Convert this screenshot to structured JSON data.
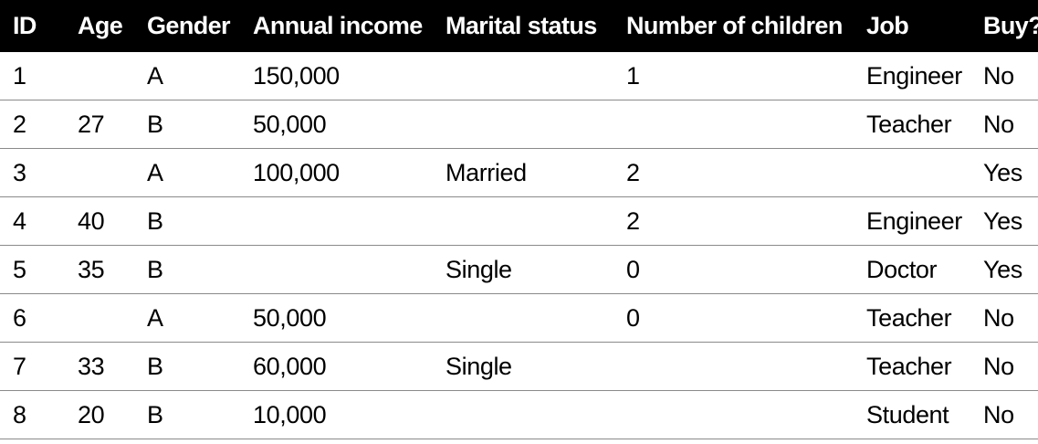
{
  "table": {
    "headers": [
      "ID",
      "Age",
      "Gender",
      "Annual income",
      "Marital status",
      "Number of children",
      "Job",
      "Buy?"
    ],
    "rows": [
      [
        "1",
        "",
        "A",
        "150,000",
        "",
        "1",
        "Engineer",
        "No"
      ],
      [
        "2",
        "27",
        "B",
        "50,000",
        "",
        "",
        "Teacher",
        "No"
      ],
      [
        "3",
        "",
        "A",
        "100,000",
        "Married",
        "2",
        "",
        "Yes"
      ],
      [
        "4",
        "40",
        "B",
        "",
        "",
        "2",
        "Engineer",
        "Yes"
      ],
      [
        "5",
        "35",
        "B",
        "",
        "Single",
        "0",
        "Doctor",
        "Yes"
      ],
      [
        "6",
        "",
        "A",
        "50,000",
        "",
        "0",
        "Teacher",
        "No"
      ],
      [
        "7",
        "33",
        "B",
        "60,000",
        "Single",
        "",
        "Teacher",
        "No"
      ],
      [
        "8",
        "20",
        "B",
        "10,000",
        "",
        "",
        "Student",
        "No"
      ]
    ]
  },
  "colors": {
    "header_background": "#000000",
    "header_text": "#ffffff",
    "row_divider": "#8a8a8a"
  }
}
